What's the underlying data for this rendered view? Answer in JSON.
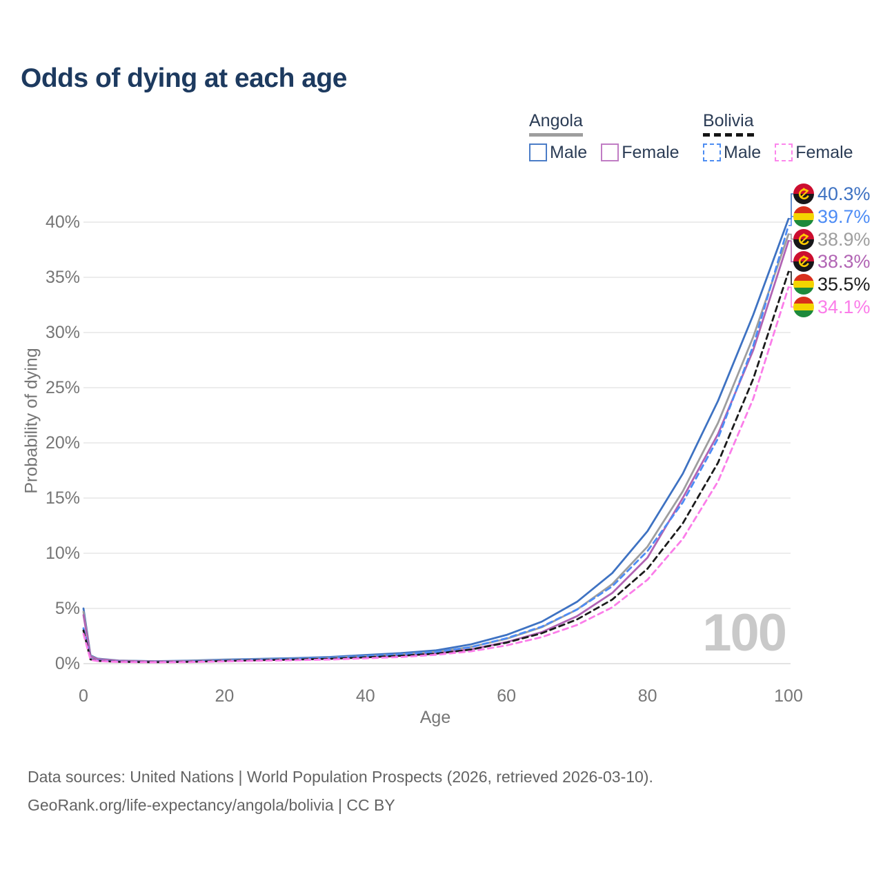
{
  "title": "Odds of dying at each age",
  "legend": {
    "groups": [
      {
        "label": "Angola",
        "underline_style": "solid",
        "underline_color": "#9e9e9e",
        "items": [
          {
            "label": "Male",
            "color": "#4a7cc7",
            "dashed": false
          },
          {
            "label": "Female",
            "color": "#c07cc4",
            "dashed": false
          }
        ]
      },
      {
        "label": "Bolivia",
        "underline_style": "dashed",
        "underline_color": "#151515",
        "items": [
          {
            "label": "Male",
            "color": "#4d8df2",
            "dashed": true
          },
          {
            "label": "Female",
            "color": "#fc86ec",
            "dashed": true
          }
        ]
      }
    ]
  },
  "chart_data": {
    "type": "line",
    "title": "Odds of dying at each age",
    "xlabel": "Age",
    "ylabel": "Probability of dying",
    "x_ticks": [
      0,
      20,
      40,
      60,
      80,
      100
    ],
    "y_ticks": [
      "0%",
      "5%",
      "10%",
      "15%",
      "20%",
      "25%",
      "30%",
      "35%",
      "40%"
    ],
    "xlim": [
      0,
      100
    ],
    "ylim_percent": [
      0,
      43
    ],
    "grid": "horizontal",
    "legend_position": "top-right",
    "watermark": "100",
    "x": [
      0,
      1,
      2,
      5,
      10,
      15,
      20,
      25,
      30,
      35,
      40,
      45,
      50,
      55,
      60,
      65,
      70,
      75,
      80,
      85,
      90,
      95,
      100
    ],
    "series": [
      {
        "name": "Angola Male",
        "country": "Angola",
        "sex": "Male",
        "color": "#3e72c2",
        "dashed": false,
        "end_label": "40.3%",
        "values_percent": [
          5.0,
          0.75,
          0.45,
          0.28,
          0.22,
          0.27,
          0.36,
          0.43,
          0.5,
          0.6,
          0.78,
          0.95,
          1.2,
          1.75,
          2.6,
          3.8,
          5.6,
          8.2,
          12.0,
          17.2,
          23.8,
          31.6,
          40.3
        ]
      },
      {
        "name": "Angola Average",
        "country": "Angola",
        "sex": "Both",
        "color": "#9e9e9e",
        "dashed": false,
        "end_label": "38.9%",
        "values_percent": [
          4.7,
          0.7,
          0.42,
          0.26,
          0.2,
          0.24,
          0.32,
          0.38,
          0.44,
          0.53,
          0.68,
          0.84,
          1.05,
          1.52,
          2.25,
          3.3,
          4.9,
          7.2,
          10.6,
          15.6,
          21.8,
          29.6,
          38.9
        ]
      },
      {
        "name": "Angola Female",
        "country": "Angola",
        "sex": "Female",
        "color": "#b164b4",
        "dashed": false,
        "end_label": "38.3%",
        "values_percent": [
          4.4,
          0.65,
          0.4,
          0.25,
          0.19,
          0.21,
          0.27,
          0.33,
          0.39,
          0.46,
          0.58,
          0.72,
          0.92,
          1.3,
          1.95,
          2.85,
          4.3,
          6.4,
          9.6,
          15.0,
          20.8,
          28.4,
          38.3
        ]
      },
      {
        "name": "Bolivia Male",
        "country": "Bolivia",
        "sex": "Male",
        "color": "#4d8cf5",
        "dashed": true,
        "end_label": "39.7%",
        "values_percent": [
          3.2,
          0.42,
          0.28,
          0.18,
          0.14,
          0.19,
          0.28,
          0.36,
          0.43,
          0.52,
          0.68,
          0.84,
          1.05,
          1.5,
          2.3,
          3.35,
          4.9,
          7.0,
          10.2,
          14.6,
          20.4,
          28.8,
          39.7
        ]
      },
      {
        "name": "Bolivia Average",
        "country": "Bolivia",
        "sex": "Both",
        "color": "#1b1b1b",
        "dashed": true,
        "end_label": "35.5%",
        "values_percent": [
          3.0,
          0.38,
          0.25,
          0.16,
          0.13,
          0.16,
          0.24,
          0.31,
          0.37,
          0.44,
          0.57,
          0.71,
          0.9,
          1.28,
          1.9,
          2.75,
          4.0,
          5.8,
          8.6,
          12.7,
          18.2,
          25.8,
          35.5
        ]
      },
      {
        "name": "Bolivia Female",
        "country": "Bolivia",
        "sex": "Female",
        "color": "#fb7de9",
        "dashed": true,
        "end_label": "34.1%",
        "values_percent": [
          2.7,
          0.35,
          0.23,
          0.15,
          0.12,
          0.14,
          0.2,
          0.26,
          0.31,
          0.37,
          0.48,
          0.6,
          0.8,
          1.12,
          1.65,
          2.4,
          3.5,
          5.1,
          7.6,
          11.3,
          16.5,
          24.0,
          34.1
        ]
      }
    ]
  },
  "footer": {
    "line1": "Data sources: United Nations | World Population Prospects (2026, retrieved 2026-03-10).",
    "line2": "GeoRank.org/life-expectancy/angola/bolivia | CC BY"
  }
}
